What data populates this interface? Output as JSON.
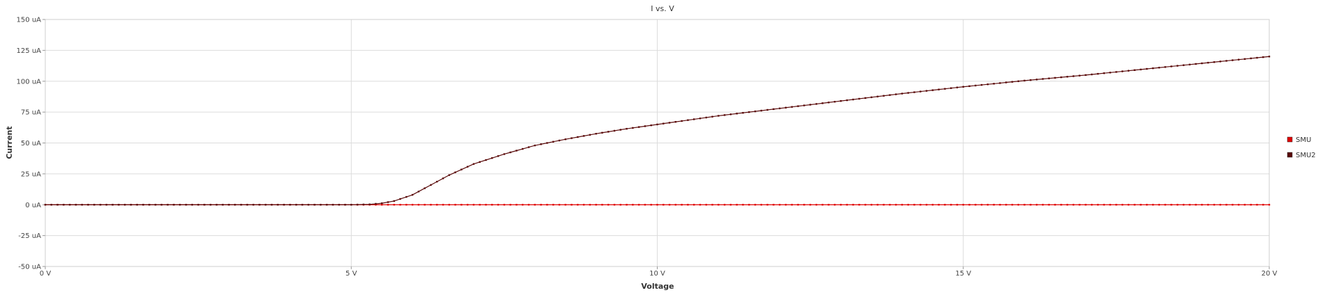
{
  "chart_data": {
    "type": "line",
    "title": "I vs. V",
    "xlabel": "Voltage",
    "ylabel": "Current",
    "xlim": [
      0,
      20
    ],
    "ylim": [
      -50,
      150
    ],
    "x_ticks": [
      0,
      5,
      10,
      15,
      20
    ],
    "x_tick_labels": [
      "0 V",
      "5 V",
      "10 V",
      "15 V",
      "20 V"
    ],
    "y_ticks": [
      -50,
      -25,
      0,
      25,
      50,
      75,
      100,
      125,
      150
    ],
    "y_tick_labels": [
      "-50 uA",
      "-25 uA",
      "0 uA",
      "25 uA",
      "50 uA",
      "75 uA",
      "100 uA",
      "125 uA",
      "150 uA"
    ],
    "grid": true,
    "legend_position": "right",
    "x_step": 0.1,
    "series": [
      {
        "name": "SMU",
        "color": "#e00000",
        "x": [
          0,
          5,
          10,
          15,
          20
        ],
        "y": [
          0,
          0,
          0,
          0,
          0
        ]
      },
      {
        "name": "SMU2",
        "color": "#5a0a0a",
        "x": [
          0,
          5,
          5.3,
          5.5,
          5.7,
          6.0,
          6.3,
          6.6,
          7.0,
          7.5,
          8.0,
          8.5,
          9.0,
          9.5,
          10,
          11,
          12,
          13,
          14,
          15,
          16,
          17,
          18,
          19,
          20
        ],
        "y": [
          0,
          0,
          0.3,
          1.2,
          3,
          8,
          16,
          24,
          33,
          41,
          48,
          53,
          57.5,
          61.5,
          65,
          72,
          78,
          84,
          90,
          95.5,
          100.5,
          105,
          110,
          115,
          120
        ]
      }
    ]
  }
}
